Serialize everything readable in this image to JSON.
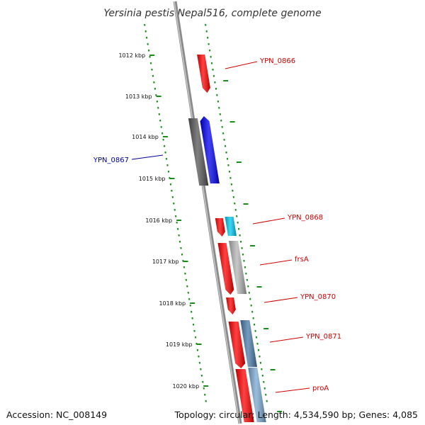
{
  "title": "Yersinia pestis Nepal516, complete genome",
  "accession": "Accession: NC_008149",
  "summary": "Topology: circular; Length: 4,534,590 bp; Genes: 4,085",
  "colors": {
    "backbone": "#8a8a8a",
    "ruler": "#1a8a1a",
    "forward_label": "#cc0000",
    "reverse_label": "#000099",
    "gene_red": "#ff0000",
    "gene_blue": "#0000ee",
    "gene_gray": "#555555",
    "gene_cyan": "#00c8f0",
    "gene_silver": "#b4b4b4",
    "gene_steel": "#4a7aa8",
    "gene_lightblue": "#7aa8d0"
  },
  "ruler_labels": [
    "1012 kbp",
    "1013 kbp",
    "1014 kbp",
    "1015 kbp",
    "1016 kbp",
    "1017 kbp",
    "1018 kbp",
    "1019 kbp",
    "1020 kbp"
  ],
  "gene_labels": [
    {
      "text": "YPN_0866",
      "strand": "forward"
    },
    {
      "text": "YPN_0867",
      "strand": "reverse"
    },
    {
      "text": "YPN_0868",
      "strand": "forward"
    },
    {
      "text": "frsA",
      "strand": "forward"
    },
    {
      "text": "YPN_0870",
      "strand": "forward"
    },
    {
      "text": "YPN_0871",
      "strand": "forward"
    },
    {
      "text": "proA",
      "strand": "forward"
    }
  ]
}
